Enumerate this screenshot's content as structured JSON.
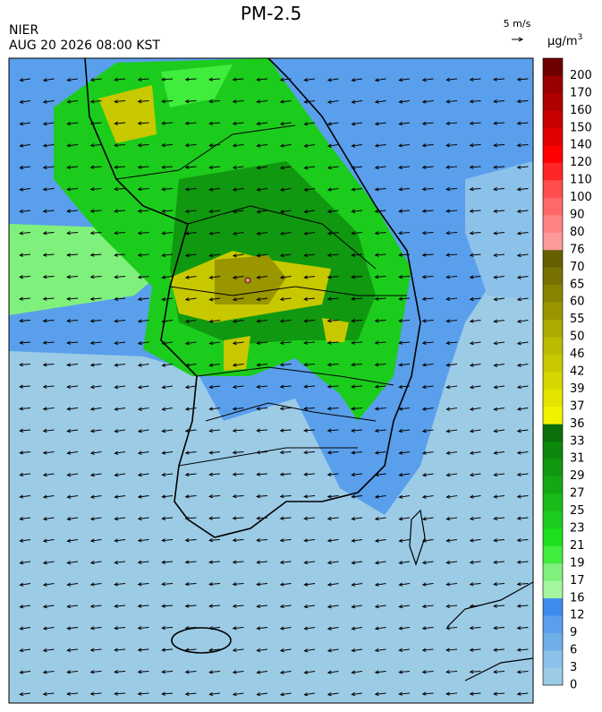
{
  "header": {
    "title": "PM-2.5",
    "agency": "NIER",
    "datetime": "AUG 20 2026 08:00 KST"
  },
  "wind_legend": {
    "label": "5 m/s"
  },
  "colorbar": {
    "unit": "μg/m",
    "unit_exp": "3",
    "levels": [
      0,
      3,
      6,
      9,
      12,
      16,
      17,
      19,
      21,
      23,
      25,
      27,
      29,
      31,
      33,
      36,
      37,
      39,
      42,
      46,
      50,
      55,
      60,
      65,
      70,
      76,
      80,
      90,
      100,
      110,
      120,
      140,
      150,
      160,
      170,
      200
    ],
    "colors": [
      "#9ccbe6",
      "#8cc1ea",
      "#6eaee9",
      "#5a9fec",
      "#3f8cef",
      "#a4f7a0",
      "#80f07c",
      "#40ec3c",
      "#1ede1e",
      "#1ccc1c",
      "#18bb18",
      "#14a814",
      "#109810",
      "#0c880c",
      "#0a700a",
      "#f2f200",
      "#e4e400",
      "#d6d600",
      "#c8c800",
      "#bbbb00",
      "#aaaa00",
      "#999600",
      "#888400",
      "#777200",
      "#665f00",
      "#ff9a9a",
      "#ff8282",
      "#ff6868",
      "#ff4c4c",
      "#ff2626",
      "#ff0000",
      "#e00000",
      "#c80000",
      "#b00000",
      "#980000",
      "#6e0000"
    ]
  }
}
